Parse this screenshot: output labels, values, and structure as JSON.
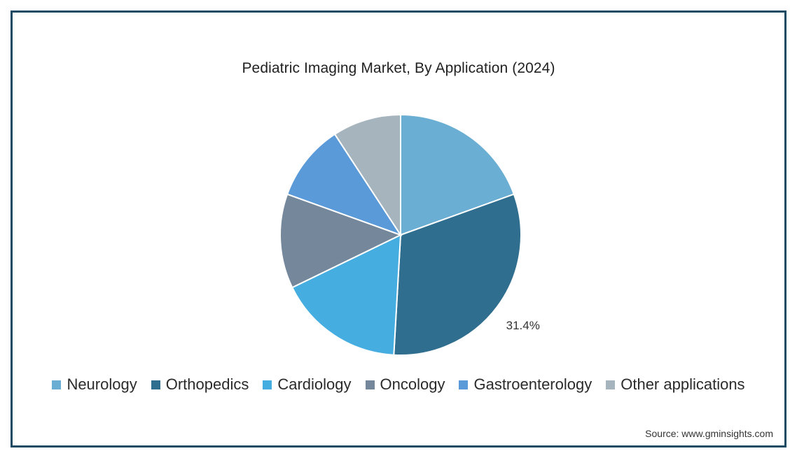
{
  "chart_data": {
    "type": "pie",
    "title": "Pediatric Imaging Market, By Application (2024)",
    "categories": [
      "Neurology",
      "Orthopedics",
      "Cardiology",
      "Oncology",
      "Gastroenterology",
      "Other applications"
    ],
    "values": [
      19.5,
      31.4,
      16.9,
      12.7,
      10.3,
      9.2
    ],
    "colors": [
      "#6aaed3",
      "#2f6e8f",
      "#45ade0",
      "#75879a",
      "#5a9ad8",
      "#a6b4bd"
    ],
    "data_labels": [
      "",
      "31.4%",
      "",
      "",
      "",
      ""
    ],
    "legend_position": "bottom",
    "start_angle_deg": 0,
    "direction": "clockwise"
  },
  "source": "Source: www.gminsights.com",
  "legend_icons": [
    "square-swatch-icon"
  ]
}
